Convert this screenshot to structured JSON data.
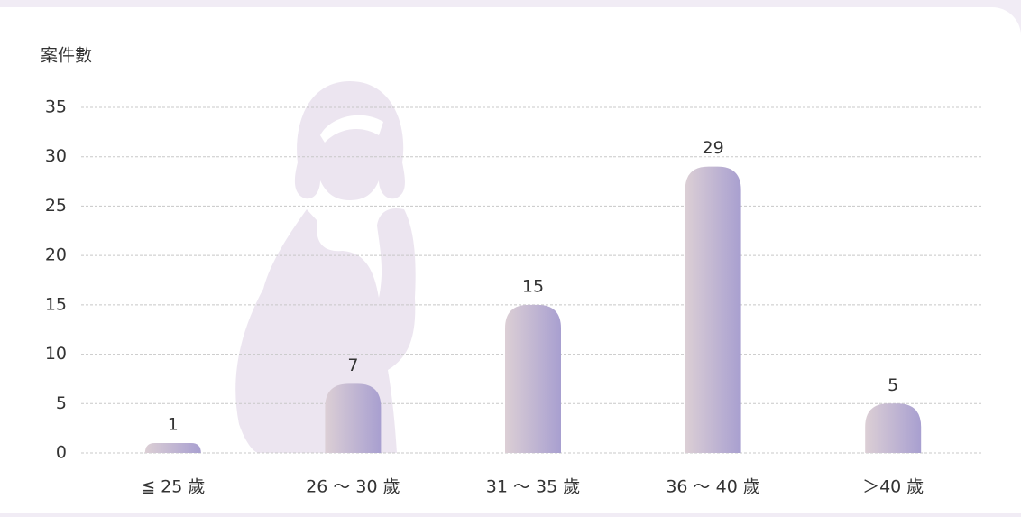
{
  "chart_data": {
    "type": "bar",
    "y_label": "案件數",
    "categories": [
      "≦ 25 歲",
      "26 ～ 30 歲",
      "31 ～ 35 歲",
      "36 ～ 40 歲",
      "＞40 歲"
    ],
    "values": [
      1,
      7,
      15,
      29,
      5
    ],
    "colors": [
      "#dccfd5",
      "#a89fd0"
    ],
    "ylim": [
      0,
      35
    ],
    "yticks": [
      0,
      5,
      10,
      15,
      20,
      25,
      30,
      35
    ],
    "grid": true
  }
}
